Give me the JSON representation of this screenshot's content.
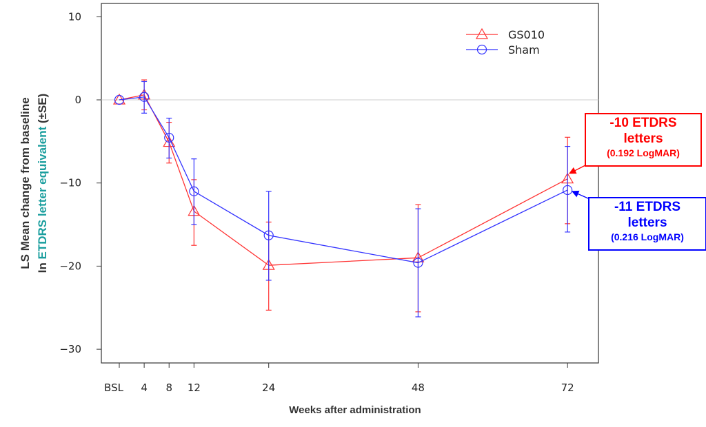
{
  "chart_data": {
    "type": "line",
    "title": "",
    "xlabel": "Weeks after administration",
    "ylabel_line1": "LS Mean change from baseline",
    "ylabel_line2_prefix": "In ",
    "ylabel_line2_highlight": "ETDRS letter equivalent",
    "ylabel_line2_suffix": " (±SE)",
    "ylabel_highlight_color": "#1a9e9e",
    "x": [
      0,
      4,
      8,
      12,
      24,
      48,
      72
    ],
    "x_tick_labels": [
      "BSL",
      "4",
      "8",
      "12",
      "24",
      "48",
      "72"
    ],
    "y_ticks": [
      10,
      0,
      -10,
      -20,
      -30
    ],
    "y_tick_labels": [
      "10",
      "0",
      "−10",
      "−20",
      "−30"
    ],
    "ylim": [
      -31.5,
      11.5
    ],
    "xlim": [
      -3,
      77
    ],
    "reference_line": 0,
    "legend_position": "top-right",
    "series": [
      {
        "name": "GS010",
        "color": "#ff3333",
        "marker": "triangle",
        "values": [
          0,
          0.6,
          -5.1,
          -13.4,
          -19.9,
          -19.0,
          -9.5
        ],
        "upper": [
          null,
          2.4,
          -2.7,
          -9.6,
          -14.7,
          -12.6,
          -4.5
        ],
        "lower": [
          null,
          -1.2,
          -7.6,
          -17.5,
          -25.3,
          -25.5,
          -14.9
        ]
      },
      {
        "name": "Sham",
        "color": "#3333ff",
        "marker": "circle",
        "values": [
          0,
          0.35,
          -4.55,
          -11.0,
          -16.3,
          -19.6,
          -10.85
        ],
        "upper": [
          null,
          2.2,
          -2.2,
          -7.1,
          -11.0,
          -13.1,
          -5.6
        ],
        "lower": [
          null,
          -1.6,
          -7.0,
          -15.0,
          -21.7,
          -26.1,
          -15.9
        ]
      }
    ],
    "annotations": [
      {
        "series": "GS010",
        "line1": "-10 ETDRS",
        "line2": "letters",
        "line3": "(0.192 LogMAR)",
        "color": "#ff0000"
      },
      {
        "series": "Sham",
        "line1": "-11 ETDRS",
        "line2": "letters",
        "line3": "(0.216 LogMAR)",
        "color": "#0000ff"
      }
    ]
  }
}
